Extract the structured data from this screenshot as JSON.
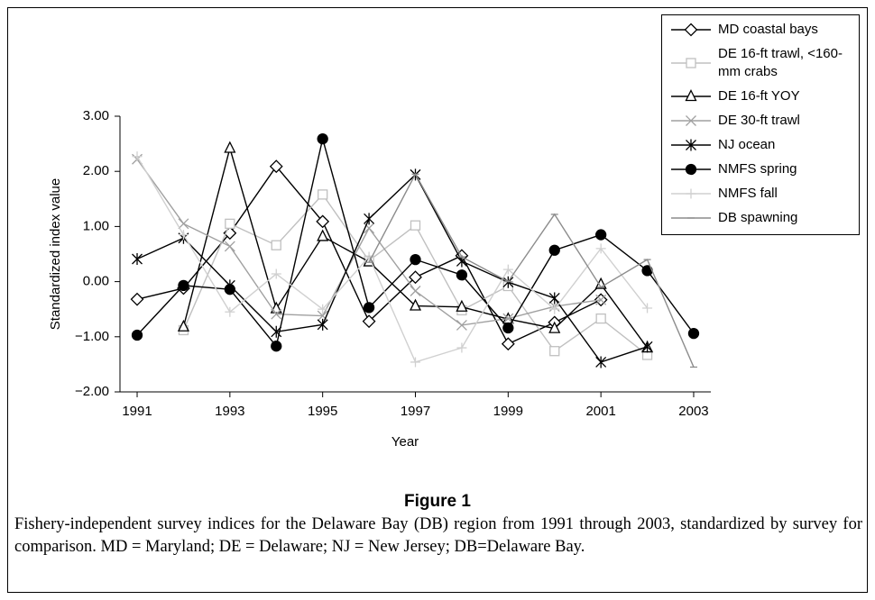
{
  "chart_data": {
    "type": "line",
    "xlabel": "Year",
    "ylabel": "Standardized index value",
    "x": [
      1991,
      1992,
      1993,
      1994,
      1995,
      1996,
      1997,
      1998,
      1999,
      2000,
      2001,
      2002,
      2003
    ],
    "xlim": [
      1990.63,
      2003.37
    ],
    "xticks": [
      1991,
      1993,
      1995,
      1997,
      1999,
      2001,
      2003
    ],
    "ylim": [
      -2,
      3
    ],
    "yticks": [
      {
        "value": -2,
        "label": "−2.00"
      },
      {
        "value": -1,
        "label": "−1.00"
      },
      {
        "value": 0,
        "label": "0.00"
      },
      {
        "value": 1,
        "label": "1.00"
      },
      {
        "value": 2,
        "label": "2.00"
      },
      {
        "value": 3,
        "label": "3.00"
      }
    ],
    "legend": "upper right",
    "series": [
      {
        "name": "MD coastal bays",
        "color": "#000000",
        "marker": "diamond",
        "values": [
          -0.32,
          -0.12,
          0.88,
          2.09,
          1.09,
          -0.72,
          0.08,
          0.47,
          -1.13,
          -0.74,
          -0.33,
          null,
          null
        ]
      },
      {
        "name": "DE 16-ft trawl, <160-mm crabs",
        "color": "#c0c0c0",
        "marker": "square",
        "values": [
          null,
          -0.88,
          1.05,
          0.66,
          1.58,
          0.38,
          1.02,
          -0.52,
          -0.08,
          -1.26,
          -0.67,
          -1.33,
          null
        ]
      },
      {
        "name": "DE 16-ft YOY",
        "color": "#000000",
        "marker": "triangle",
        "values": [
          null,
          -0.82,
          2.42,
          -0.49,
          0.82,
          0.36,
          -0.44,
          -0.46,
          -0.68,
          -0.85,
          -0.05,
          -1.2,
          null
        ]
      },
      {
        "name": "DE 30-ft trawl",
        "color": "#a0a0a0",
        "marker": "x",
        "values": [
          2.22,
          1.05,
          0.64,
          -0.59,
          -0.62,
          0.97,
          -0.17,
          -0.79,
          -0.67,
          -0.45,
          -0.33,
          null,
          null
        ]
      },
      {
        "name": "NJ ocean",
        "color": "#000000",
        "marker": "asterisk",
        "values": [
          0.41,
          0.79,
          -0.07,
          -0.91,
          -0.78,
          1.14,
          1.94,
          0.37,
          -0.01,
          -0.3,
          -1.46,
          -1.18,
          null
        ]
      },
      {
        "name": "NMFS spring",
        "color": "#000000",
        "marker": "circle",
        "values": [
          -0.97,
          -0.07,
          -0.14,
          -1.17,
          2.59,
          -0.47,
          0.4,
          0.12,
          -0.84,
          0.57,
          0.85,
          0.2,
          -0.94
        ]
      },
      {
        "name": "NMFS fall",
        "color": "#d0d0d0",
        "marker": "plus",
        "values": [
          2.27,
          0.85,
          -0.55,
          0.14,
          -0.5,
          0.45,
          -1.46,
          -1.2,
          0.22,
          -0.5,
          0.6,
          -0.48,
          null
        ]
      },
      {
        "name": "DB spawning",
        "color": "#8c8c8c",
        "marker": "dash",
        "values": [
          null,
          null,
          null,
          null,
          null,
          0.35,
          1.95,
          0.45,
          0.0,
          1.22,
          -0.1,
          0.4,
          -1.55
        ]
      }
    ]
  },
  "figure": {
    "title": "Figure 1",
    "caption": "Fishery-independent survey indices for the Delaware Bay (DB) region from 1991 through 2003, standardized by survey for comparison. MD = Maryland; DE = Delaware; NJ = New Jersey; DB=Delaware Bay."
  }
}
